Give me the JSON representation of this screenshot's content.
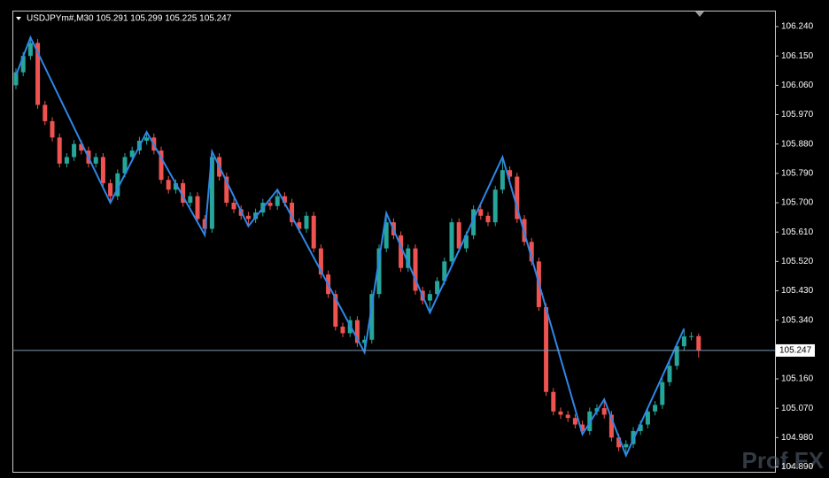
{
  "chart_data": {
    "type": "candlestick",
    "header": "USDJPYm#,M30  105.291 105.299 105.225 105.247",
    "watermark": "Prof.FX",
    "up_color": "#26a69a",
    "down_color": "#ef5350",
    "zigzag_color": "#2f86e8",
    "price_line_color": "#7f97b0",
    "ylim": [
      104.875,
      106.289
    ],
    "yticks": [
      {
        "value": 106.24,
        "label": "106.240"
      },
      {
        "value": 106.15,
        "label": "106.150"
      },
      {
        "value": 106.06,
        "label": "106.060"
      },
      {
        "value": 105.97,
        "label": "105.970"
      },
      {
        "value": 105.88,
        "label": "105.880"
      },
      {
        "value": 105.79,
        "label": "105.790"
      },
      {
        "value": 105.7,
        "label": "105.700"
      },
      {
        "value": 105.61,
        "label": "105.610"
      },
      {
        "value": 105.52,
        "label": "105.520"
      },
      {
        "value": 105.43,
        "label": "105.430"
      },
      {
        "value": 105.34,
        "label": "105.340"
      },
      {
        "value": 105.16,
        "label": "105.160"
      },
      {
        "value": 105.07,
        "label": "105.070"
      },
      {
        "value": 104.98,
        "label": "104.980"
      },
      {
        "value": 104.89,
        "label": "104.890"
      }
    ],
    "current_price": {
      "value": 105.247,
      "label": "105.247"
    },
    "open": [
      106.06,
      106.1,
      106.15,
      106.19,
      106,
      105.95,
      105.9,
      105.82,
      105.84,
      105.88,
      105.86,
      105.82,
      105.84,
      105.76,
      105.72,
      105.79,
      105.84,
      105.86,
      105.89,
      105.9,
      105.86,
      105.77,
      105.74,
      105.76,
      105.7,
      105.72,
      105.65,
      105.62,
      105.84,
      105.78,
      105.7,
      105.68,
      105.66,
      105.65,
      105.67,
      105.7,
      105.69,
      105.72,
      105.7,
      105.64,
      105.62,
      105.66,
      105.56,
      105.48,
      105.42,
      105.32,
      105.3,
      105.34,
      105.27,
      105.28,
      105.42,
      105.56,
      105.64,
      105.6,
      105.5,
      105.56,
      105.43,
      105.4,
      105.42,
      105.46,
      105.52,
      105.64,
      105.56,
      105.6,
      105.68,
      105.66,
      105.64,
      105.74,
      105.8,
      105.78,
      105.65,
      105.58,
      105.52,
      105.38,
      105.12,
      105.06,
      105.05,
      105.04,
      105.02,
      105,
      105.06,
      105.07,
      105.05,
      104.98,
      104.95,
      104.96,
      105,
      105.02,
      105.06,
      105.08,
      105.15,
      105.2,
      105.26,
      105.29,
      105.291
    ],
    "high": [
      106.112,
      106.162,
      106.207,
      106.202,
      106.012,
      105.962,
      105.912,
      105.852,
      105.892,
      105.892,
      105.872,
      105.852,
      105.852,
      105.772,
      105.802,
      105.852,
      105.872,
      105.902,
      105.917,
      105.912,
      105.872,
      105.782,
      105.772,
      105.772,
      105.732,
      105.732,
      105.662,
      105.857,
      105.852,
      105.792,
      105.712,
      105.692,
      105.672,
      105.682,
      105.712,
      105.712,
      105.74,
      105.732,
      105.712,
      105.652,
      105.672,
      105.672,
      105.572,
      105.492,
      105.432,
      105.332,
      105.352,
      105.352,
      105.292,
      105.432,
      105.572,
      105.668,
      105.652,
      105.612,
      105.572,
      105.572,
      105.442,
      105.432,
      105.472,
      105.532,
      105.652,
      105.652,
      105.612,
      105.692,
      105.692,
      105.672,
      105.752,
      105.84,
      105.812,
      105.792,
      105.662,
      105.592,
      105.532,
      105.392,
      105.132,
      105.072,
      105.062,
      105.052,
      105.032,
      105.072,
      105.082,
      105.097,
      105.062,
      104.992,
      104.972,
      105.012,
      105.032,
      105.072,
      105.092,
      105.162,
      105.212,
      105.272,
      105.314,
      105.303,
      105.299
    ],
    "low": [
      106.048,
      106.088,
      106.138,
      105.988,
      105.938,
      105.888,
      105.808,
      105.808,
      105.828,
      105.848,
      105.808,
      105.808,
      105.748,
      105.7,
      105.708,
      105.778,
      105.828,
      105.848,
      105.878,
      105.848,
      105.758,
      105.728,
      105.728,
      105.688,
      105.688,
      105.638,
      105.601,
      105.608,
      105.768,
      105.688,
      105.668,
      105.648,
      105.628,
      105.638,
      105.658,
      105.678,
      105.678,
      105.688,
      105.628,
      105.608,
      105.608,
      105.548,
      105.468,
      105.408,
      105.308,
      105.288,
      105.288,
      105.258,
      105.241,
      105.268,
      105.408,
      105.548,
      105.588,
      105.488,
      105.488,
      105.418,
      105.388,
      105.363,
      105.408,
      105.448,
      105.508,
      105.548,
      105.548,
      105.588,
      105.648,
      105.628,
      105.628,
      105.728,
      105.768,
      105.638,
      105.568,
      105.508,
      105.368,
      105.108,
      105.048,
      105.038,
      105.028,
      105.008,
      104.99,
      104.988,
      105.048,
      105.038,
      104.968,
      104.938,
      104.925,
      104.948,
      104.988,
      105.008,
      105.048,
      105.068,
      105.138,
      105.188,
      105.248,
      105.278,
      105.225
    ],
    "close": [
      106.1,
      106.15,
      106.19,
      106,
      105.95,
      105.9,
      105.82,
      105.84,
      105.88,
      105.86,
      105.82,
      105.84,
      105.76,
      105.72,
      105.79,
      105.84,
      105.86,
      105.89,
      105.9,
      105.86,
      105.77,
      105.74,
      105.76,
      105.7,
      105.72,
      105.65,
      105.62,
      105.84,
      105.78,
      105.7,
      105.68,
      105.66,
      105.65,
      105.67,
      105.7,
      105.69,
      105.72,
      105.7,
      105.64,
      105.62,
      105.66,
      105.56,
      105.48,
      105.42,
      105.32,
      105.3,
      105.34,
      105.27,
      105.28,
      105.42,
      105.56,
      105.64,
      105.6,
      105.5,
      105.56,
      105.43,
      105.4,
      105.42,
      105.46,
      105.52,
      105.64,
      105.56,
      105.6,
      105.68,
      105.66,
      105.64,
      105.74,
      105.8,
      105.78,
      105.65,
      105.58,
      105.52,
      105.38,
      105.12,
      105.06,
      105.05,
      105.04,
      105.02,
      105,
      105.06,
      105.07,
      105.05,
      104.98,
      104.95,
      104.96,
      105,
      105.02,
      105.06,
      105.08,
      105.15,
      105.2,
      105.26,
      105.29,
      105.291,
      105.247
    ],
    "zigzag": {
      "x": [
        0,
        2,
        13,
        18,
        26,
        27,
        32,
        36,
        48,
        51,
        57,
        67,
        78,
        81,
        84,
        92
      ],
      "values": [
        106.09,
        106.207,
        105.7,
        105.917,
        105.601,
        105.857,
        105.628,
        105.74,
        105.241,
        105.668,
        105.363,
        105.84,
        104.99,
        105.097,
        104.925,
        105.314
      ]
    }
  }
}
